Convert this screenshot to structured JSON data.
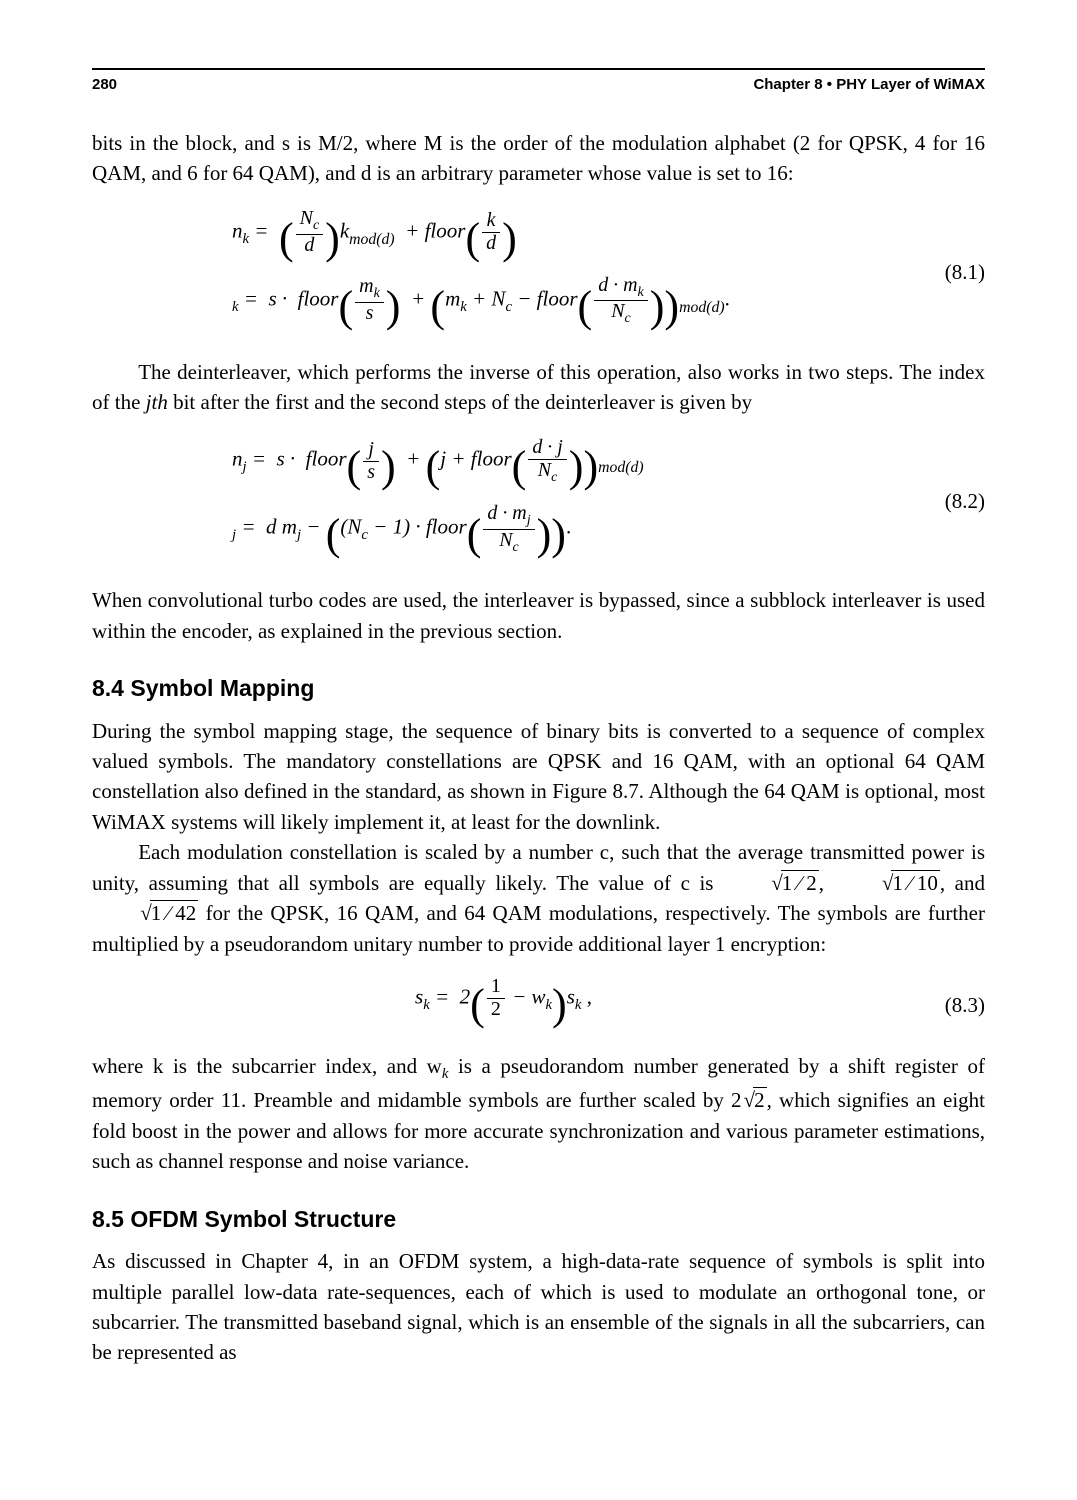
{
  "header": {
    "page_number": "280",
    "chapter_label": "Chapter  8  •  PHY Layer of WiMAX"
  },
  "paragraphs": {
    "p1": "bits in the block, and s is M/2, where M is the order of the modulation alphabet (2 for QPSK, 4 for 16 QAM, and 6 for 64 QAM), and d is an arbitrary parameter whose value is set to 16:",
    "p2a": "The deinterleaver, which performs the inverse of this operation, also works in two steps. The index of the ",
    "p2b": "jth",
    "p2c": " bit after the first and the second steps of the deinterleaver is given by",
    "p3": "When convolutional turbo codes are used, the interleaver is bypassed, since a subblock interleaver is used within the encoder, as explained in the previous section.",
    "p4": "During the symbol mapping stage, the sequence of binary bits is converted to a sequence of complex valued symbols. The mandatory constellations are QPSK and 16 QAM, with an optional 64 QAM constellation also defined in the standard, as shown in Figure 8.7. Although the 64 QAM is optional, most WiMAX systems will likely implement it, at least for the downlink.",
    "p5a": "Each modulation constellation is scaled by a number c, such that the average transmitted power is unity, assuming that all symbols are equally likely. The value of c is ",
    "p5b": ", ",
    "p5c": ", and ",
    "p5d": " for the QPSK, 16 QAM, and 64 QAM modulations, respectively. The symbols are further multiplied by a pseudorandom unitary number to provide additional layer 1 encryption:",
    "p6a": "where k is the subcarrier index, and w",
    "p6b": " is a pseudorandom number generated by a shift register of memory order 11. Preamble and midamble symbols are further scaled by ",
    "p6c": ", which signifies an eight fold boost in the power and allows for more accurate synchronization and various parameter estimations, such as channel response and noise variance.",
    "p7": "As discussed in Chapter 4, in an OFDM system, a high-data-rate sequence of symbols is split into multiple parallel low-data rate-sequences, each of which is used to modulate an orthogonal tone, or subcarrier. The transmitted baseband signal, which is an ensemble of the signals in all the subcarriers, can be represented as"
  },
  "headings": {
    "h84": "8.4  Symbol Mapping",
    "h85": "8.5  OFDM Symbol Structure"
  },
  "equations": {
    "eq81_num": "(8.1)",
    "eq82_num": "(8.2)",
    "eq83_num": "(8.3)",
    "sqrt_1_2": "1 ∕  2",
    "sqrt_1_10": "1 ∕  10",
    "sqrt_1_42": "1 ∕  42",
    "two_sqrt2": "2",
    "sqrt2_rad": "2"
  }
}
